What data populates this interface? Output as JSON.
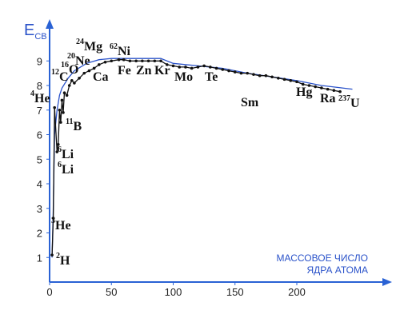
{
  "chart_data": {
    "type": "line",
    "ylabel": {
      "main": "E",
      "sub": "СВ"
    },
    "xlabel": [
      "МАССОВОЕ ЧИСЛО",
      "ЯДРА АТОМА"
    ],
    "xlim": [
      0,
      274
    ],
    "ylim": [
      0,
      10.5
    ],
    "xticks": [
      0,
      50,
      100,
      150,
      200
    ],
    "yticks": [
      1,
      2,
      3,
      4,
      5,
      6,
      7,
      8,
      9
    ],
    "axis_color": "#2a62d4",
    "series": [
      {
        "color": "#2a52c9",
        "markers": false,
        "x": [
          2,
          3,
          4,
          6,
          8,
          10,
          15,
          20,
          30,
          40,
          50,
          60,
          70,
          80,
          90,
          100,
          120,
          140,
          160,
          180,
          200,
          220,
          245
        ],
        "values": [
          1.0,
          3.0,
          6.0,
          7.0,
          7.6,
          7.9,
          8.3,
          8.6,
          8.9,
          9.05,
          9.1,
          9.1,
          9.1,
          9.1,
          9.1,
          8.9,
          8.8,
          8.7,
          8.5,
          8.35,
          8.2,
          8.0,
          7.85
        ]
      },
      {
        "color": "#111111",
        "markers": true,
        "x": [
          2,
          3,
          4,
          6,
          7,
          8,
          9,
          10,
          11,
          12,
          14,
          16,
          18,
          20,
          24,
          28,
          32,
          36,
          40,
          45,
          50,
          56,
          60,
          65,
          70,
          75,
          80,
          85,
          90,
          95,
          100,
          105,
          110,
          115,
          120,
          125,
          130,
          135,
          140,
          145,
          150,
          155,
          160,
          165,
          170,
          175,
          180,
          185,
          190,
          195,
          200,
          205,
          210,
          215,
          220,
          225,
          230,
          235
        ],
        "values": [
          1.1,
          2.6,
          7.1,
          5.3,
          5.6,
          7.0,
          6.5,
          7.4,
          6.9,
          7.7,
          7.6,
          8.0,
          8.2,
          8.1,
          8.3,
          8.5,
          8.6,
          8.7,
          8.85,
          8.95,
          9.0,
          9.05,
          9.05,
          9.0,
          9.0,
          9.0,
          9.0,
          9.0,
          9.0,
          8.85,
          8.8,
          8.75,
          8.75,
          8.7,
          8.75,
          8.8,
          8.75,
          8.7,
          8.65,
          8.6,
          8.55,
          8.5,
          8.5,
          8.45,
          8.4,
          8.4,
          8.35,
          8.3,
          8.25,
          8.2,
          8.15,
          8.05,
          8.0,
          7.95,
          7.9,
          7.85,
          7.8,
          7.75
        ]
      }
    ],
    "annotations": [
      {
        "mass": "2",
        "symbol": "H"
      },
      {
        "mass": "3",
        "symbol": "He"
      },
      {
        "mass": "4",
        "symbol": "He"
      },
      {
        "mass": "6",
        "symbol": "Li"
      },
      {
        "mass": "6",
        "symbol": "Li"
      },
      {
        "mass": "11",
        "symbol": "B"
      },
      {
        "mass": "12",
        "symbol": "C"
      },
      {
        "mass": "16",
        "symbol": "O"
      },
      {
        "mass": "20",
        "symbol": "Ne"
      },
      {
        "mass": "24",
        "symbol": "Mg"
      },
      {
        "mass": "62",
        "symbol": "Ni"
      },
      {
        "symbol": "Ca"
      },
      {
        "symbol": "Fe"
      },
      {
        "symbol": "Zn"
      },
      {
        "symbol": "Kr"
      },
      {
        "symbol": "Mo"
      },
      {
        "symbol": "Te"
      },
      {
        "symbol": "Sm"
      },
      {
        "symbol": "Hg"
      },
      {
        "symbol": "Ra"
      },
      {
        "mass": "237",
        "symbol": "U"
      }
    ]
  }
}
